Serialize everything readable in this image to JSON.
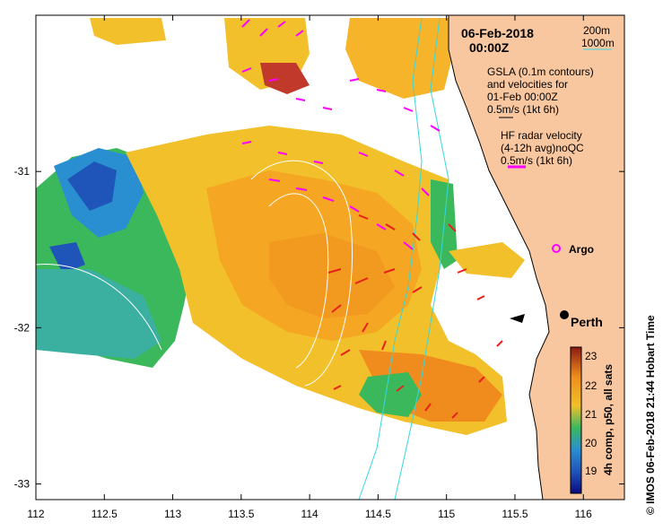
{
  "map": {
    "date_title": "06-Feb-2018",
    "time_title": "00:00Z",
    "x_ticks": [
      "112",
      "112.5",
      "113",
      "113.5",
      "114",
      "114.5",
      "115",
      "115.5",
      "116"
    ],
    "y_ticks": [
      "-31",
      "-32",
      "-33"
    ],
    "lon_range": [
      112,
      116.3
    ],
    "lat_range": [
      -33.1,
      -30.0
    ],
    "land_color": "#f8c79f",
    "ocean_color": "#ffffff"
  },
  "legend": {
    "isobath_200": "200m",
    "isobath_1000": "1000m",
    "isobath_color": "#36d7e0",
    "gsla_line1": "GSLA (0.1m contours)",
    "gsla_line2": "and velocities for",
    "gsla_line3": "01-Feb 00:00Z",
    "gsla_scale": "0.5m/s (1kt 6h)",
    "hf_line1": "HF radar velocity",
    "hf_line2": "(4-12h avg)noQC",
    "hf_scale": "0.5m/s (1kt 6h)",
    "hf_arrow_color": "#ff00ff",
    "current_arrow_color": "#e8201a"
  },
  "places": {
    "city": "Perth",
    "float": "Argo"
  },
  "colorbar": {
    "title": "4h comp, p50, all sats",
    "ticks": [
      "23",
      "22",
      "21",
      "20",
      "19"
    ],
    "range": [
      18.5,
      23.5
    ]
  },
  "credit": "© IMOS 06-Feb-2018 21:44 Hobart Time"
}
